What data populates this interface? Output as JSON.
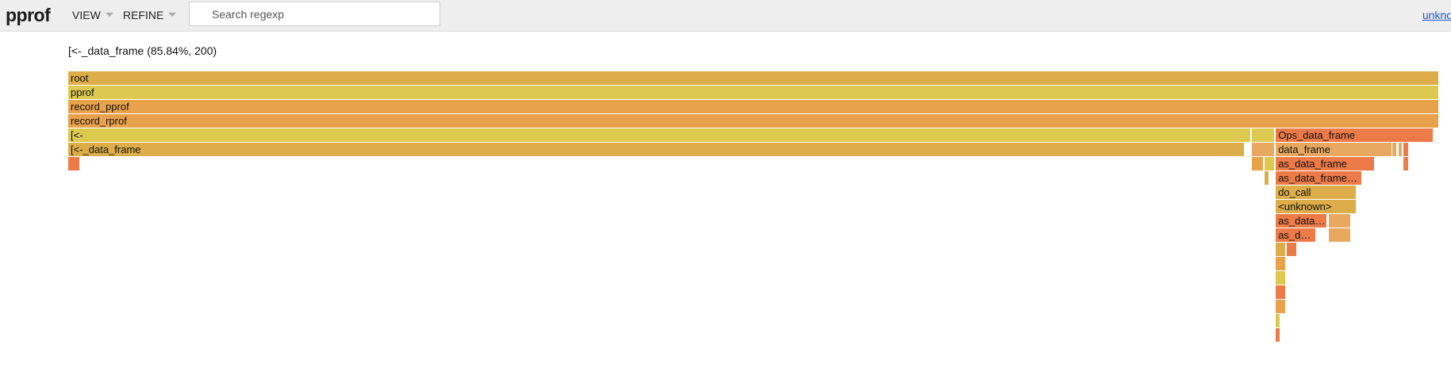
{
  "header": {
    "logo": "pprof",
    "menus": [
      {
        "label": "VIEW"
      },
      {
        "label": "REFINE"
      }
    ],
    "search": {
      "placeholder": "Search regexp",
      "value": ""
    },
    "user_link": "unknown"
  },
  "details": "[<-_data_frame (85.84%, 200)",
  "flamegraph": {
    "colors": {
      "gold": "#dcad48",
      "yellow": "#ddc94f",
      "orange": "#e9a24c",
      "red": "#ec7b48",
      "lightorange": "#e8a860"
    },
    "frames": [
      {
        "row": 0,
        "start": 0.0,
        "width": 1.0,
        "label": "root",
        "color": "gold"
      },
      {
        "row": 1,
        "start": 0.0,
        "width": 1.0,
        "label": "pprof",
        "color": "yellow"
      },
      {
        "row": 2,
        "start": 0.0,
        "width": 1.0,
        "label": "record_pprof",
        "color": "orange"
      },
      {
        "row": 3,
        "start": 0.0,
        "width": 1.0,
        "label": "record_rprof",
        "color": "orange"
      },
      {
        "row": 4,
        "start": 0.0,
        "width": 0.8627,
        "label": "[<-",
        "color": "yellow"
      },
      {
        "row": 4,
        "start": 0.8633,
        "width": 0.0172,
        "label": "",
        "color": "yellow"
      },
      {
        "row": 4,
        "start": 0.8809,
        "width": 0.1151,
        "label": "Ops_data_frame",
        "color": "red"
      },
      {
        "row": 5,
        "start": 0.0,
        "width": 0.8584,
        "label": "[<-_data_frame",
        "color": "gold"
      },
      {
        "row": 5,
        "start": 0.8633,
        "width": 0.0172,
        "label": "",
        "color": "lightorange"
      },
      {
        "row": 5,
        "start": 0.8809,
        "width": 0.0848,
        "label": "data_frame",
        "color": "lightorange"
      },
      {
        "row": 5,
        "start": 0.9661,
        "width": 0.0035,
        "label": "",
        "color": "lightorange"
      },
      {
        "row": 5,
        "start": 0.9702,
        "width": 0.0032,
        "label": "",
        "color": "lightorange"
      },
      {
        "row": 5,
        "start": 0.974,
        "width": 0.0038,
        "label": "",
        "color": "red"
      },
      {
        "row": 6,
        "start": 0.0,
        "width": 0.0086,
        "label": "",
        "color": "red"
      },
      {
        "row": 6,
        "start": 0.8633,
        "width": 0.0086,
        "label": "",
        "color": "orange"
      },
      {
        "row": 6,
        "start": 0.8725,
        "width": 0.008,
        "label": "",
        "color": "yellow"
      },
      {
        "row": 6,
        "start": 0.8809,
        "width": 0.072,
        "label": "as_data_frame",
        "color": "red"
      },
      {
        "row": 6,
        "start": 0.974,
        "width": 0.0038,
        "label": "",
        "color": "red"
      },
      {
        "row": 7,
        "start": 0.8725,
        "width": 0.0039,
        "label": "",
        "color": "gold"
      },
      {
        "row": 7,
        "start": 0.8809,
        "width": 0.0632,
        "label": "as_data_frame…",
        "color": "red"
      },
      {
        "row": 8,
        "start": 0.8809,
        "width": 0.0592,
        "label": "do_call",
        "color": "gold"
      },
      {
        "row": 9,
        "start": 0.8809,
        "width": 0.0592,
        "label": "<unknown>",
        "color": "gold"
      },
      {
        "row": 10,
        "start": 0.8809,
        "width": 0.0375,
        "label": "as_data…",
        "color": "red"
      },
      {
        "row": 10,
        "start": 0.9193,
        "width": 0.0165,
        "label": "",
        "color": "lightorange"
      },
      {
        "row": 11,
        "start": 0.8809,
        "width": 0.0295,
        "label": "as_d…",
        "color": "red"
      },
      {
        "row": 11,
        "start": 0.9193,
        "width": 0.0165,
        "label": "",
        "color": "lightorange"
      },
      {
        "row": 12,
        "start": 0.8809,
        "width": 0.0075,
        "label": "",
        "color": "gold"
      },
      {
        "row": 12,
        "start": 0.889,
        "width": 0.0075,
        "label": "",
        "color": "red"
      },
      {
        "row": 13,
        "start": 0.8809,
        "width": 0.0075,
        "label": "",
        "color": "orange"
      },
      {
        "row": 14,
        "start": 0.8809,
        "width": 0.0075,
        "label": "",
        "color": "yellow"
      },
      {
        "row": 15,
        "start": 0.8809,
        "width": 0.0075,
        "label": "",
        "color": "red"
      },
      {
        "row": 16,
        "start": 0.8809,
        "width": 0.0075,
        "label": "",
        "color": "orange"
      },
      {
        "row": 17,
        "start": 0.8809,
        "width": 0.0035,
        "label": "",
        "color": "yellow"
      },
      {
        "row": 18,
        "start": 0.8809,
        "width": 0.0035,
        "label": "",
        "color": "red"
      }
    ]
  }
}
